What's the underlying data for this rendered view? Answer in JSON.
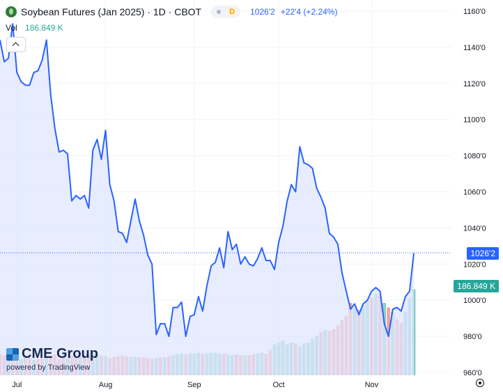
{
  "header": {
    "title": "Soybean Futures (Jan 2025) · 1D · CBOT",
    "interval_badge": "D",
    "last_price": "1026'2",
    "change": "+22'4 (+2.24%)"
  },
  "volume_legend": {
    "label": "Vol",
    "value": "186.849 K"
  },
  "brand": {
    "name": "CME Group",
    "powered_by": "powered by TradingView"
  },
  "price_tag": "1026'2",
  "volume_tag": "186.849 K",
  "colors": {
    "line": "#2962ff",
    "area": "#dfe6fd",
    "volume_up": "#26a69a",
    "volume_down": "#ef5350"
  },
  "chart_data": {
    "type": "area",
    "y_axis": {
      "min": 960,
      "max": 1160,
      "ticks": [
        960,
        980,
        1000,
        1020,
        1040,
        1060,
        1080,
        1100,
        1120,
        1140,
        1160
      ],
      "tick_labels": [
        "960'0",
        "980'0",
        "1000'0",
        "1020'0",
        "1040'0",
        "1060'0",
        "1080'0",
        "1100'0",
        "1120'0",
        "1140'0",
        "1160'0"
      ],
      "position": "right"
    },
    "x_axis": {
      "labels": [
        {
          "label": "Jul",
          "index": 4
        },
        {
          "label": "Aug",
          "index": 25
        },
        {
          "label": "Sep",
          "index": 46
        },
        {
          "label": "Oct",
          "index": 66
        },
        {
          "label": "Nov",
          "index": 88
        }
      ]
    },
    "grid": true,
    "last_price": 1026.25,
    "series": [
      {
        "values": [
          1144,
          1132,
          1134,
          1153,
          1126,
          1121,
          1119,
          1119,
          1126,
          1127,
          1133,
          1144,
          1114,
          1095,
          1082,
          1083,
          1081,
          1055,
          1058,
          1056,
          1058,
          1051,
          1083,
          1089,
          1078,
          1094,
          1064,
          1055,
          1038,
          1037,
          1032,
          1044,
          1056,
          1044,
          1036,
          1025,
          1020,
          981,
          987,
          987,
          980,
          996,
          996,
          999,
          980,
          991,
          992,
          1002,
          994,
          1008,
          1019,
          1021,
          1029,
          1018,
          1038,
          1028,
          1031,
          1020,
          1024,
          1020,
          1019,
          1023,
          1029,
          1022,
          1022,
          1017,
          1032,
          1041,
          1055,
          1064,
          1060,
          1085,
          1076,
          1075,
          1073,
          1062,
          1057,
          1051,
          1037,
          1035,
          1031,
          1015,
          1005,
          995,
          998,
          992,
          998,
          1000,
          1005,
          1007,
          1005,
          987,
          980,
          995,
          996,
          994,
          1002,
          1005,
          1026
        ]
      }
    ],
    "volume": {
      "up_color": "#26a69a",
      "down_color": "#ef5350",
      "values": [
        {
          "v": 24,
          "up": false
        },
        {
          "v": 22,
          "up": false
        },
        {
          "v": 21,
          "up": true
        },
        {
          "v": 20,
          "up": false
        },
        {
          "v": 19,
          "up": false
        },
        {
          "v": 18,
          "up": true
        },
        {
          "v": 19,
          "up": false
        },
        {
          "v": 20,
          "up": false
        },
        {
          "v": 17,
          "up": true
        },
        {
          "v": 18,
          "up": false
        },
        {
          "v": 19,
          "up": false
        },
        {
          "v": 21,
          "up": true
        },
        {
          "v": 22,
          "up": false
        },
        {
          "v": 23,
          "up": false
        },
        {
          "v": 18,
          "up": false
        },
        {
          "v": 20,
          "up": false
        },
        {
          "v": 19,
          "up": true
        },
        {
          "v": 21,
          "up": false
        },
        {
          "v": 22,
          "up": false
        },
        {
          "v": 21,
          "up": true
        },
        {
          "v": 20,
          "up": false
        },
        {
          "v": 22,
          "up": false
        },
        {
          "v": 24,
          "up": true
        },
        {
          "v": 23,
          "up": true
        },
        {
          "v": 22,
          "up": false
        },
        {
          "v": 21,
          "up": true
        },
        {
          "v": 19,
          "up": false
        },
        {
          "v": 20,
          "up": false
        },
        {
          "v": 21,
          "up": false
        },
        {
          "v": 22,
          "up": false
        },
        {
          "v": 21,
          "up": false
        },
        {
          "v": 20,
          "up": true
        },
        {
          "v": 21,
          "up": true
        },
        {
          "v": 20,
          "up": false
        },
        {
          "v": 20,
          "up": false
        },
        {
          "v": 19,
          "up": false
        },
        {
          "v": 18,
          "up": false
        },
        {
          "v": 19,
          "up": true
        },
        {
          "v": 20,
          "up": false
        },
        {
          "v": 20,
          "up": true
        },
        {
          "v": 21,
          "up": false
        },
        {
          "v": 22,
          "up": true
        },
        {
          "v": 23,
          "up": true
        },
        {
          "v": 24,
          "up": true
        },
        {
          "v": 23,
          "up": false
        },
        {
          "v": 24,
          "up": true
        },
        {
          "v": 24,
          "up": true
        },
        {
          "v": 25,
          "up": true
        },
        {
          "v": 24,
          "up": false
        },
        {
          "v": 24,
          "up": true
        },
        {
          "v": 25,
          "up": true
        },
        {
          "v": 25,
          "up": true
        },
        {
          "v": 24,
          "up": true
        },
        {
          "v": 24,
          "up": false
        },
        {
          "v": 23,
          "up": true
        },
        {
          "v": 22,
          "up": true
        },
        {
          "v": 23,
          "up": false
        },
        {
          "v": 22,
          "up": false
        },
        {
          "v": 22,
          "up": true
        },
        {
          "v": 22,
          "up": false
        },
        {
          "v": 23,
          "up": false
        },
        {
          "v": 24,
          "up": true
        },
        {
          "v": 25,
          "up": true
        },
        {
          "v": 24,
          "up": false
        },
        {
          "v": 28,
          "up": false
        },
        {
          "v": 34,
          "up": true
        },
        {
          "v": 36,
          "up": true
        },
        {
          "v": 38,
          "up": true
        },
        {
          "v": 34,
          "up": true
        },
        {
          "v": 36,
          "up": true
        },
        {
          "v": 35,
          "up": false
        },
        {
          "v": 32,
          "up": true
        },
        {
          "v": 35,
          "up": true
        },
        {
          "v": 36,
          "up": true
        },
        {
          "v": 40,
          "up": true
        },
        {
          "v": 44,
          "up": true
        },
        {
          "v": 48,
          "up": false
        },
        {
          "v": 50,
          "up": true
        },
        {
          "v": 49,
          "up": false
        },
        {
          "v": 51,
          "up": false
        },
        {
          "v": 55,
          "up": false
        },
        {
          "v": 61,
          "up": false
        },
        {
          "v": 66,
          "up": false
        },
        {
          "v": 80,
          "up": false
        },
        {
          "v": 75,
          "up": true
        },
        {
          "v": 72,
          "up": false
        },
        {
          "v": 78,
          "up": true
        },
        {
          "v": 82,
          "up": true
        },
        {
          "v": 86,
          "up": false
        },
        {
          "v": 90,
          "up": true
        },
        {
          "v": 88,
          "up": false
        },
        {
          "v": 80,
          "up": true
        },
        {
          "v": 75,
          "up": false
        },
        {
          "v": 70,
          "up": true
        },
        {
          "v": 62,
          "up": false
        },
        {
          "v": 58,
          "up": false
        },
        {
          "v": 70,
          "up": true
        },
        {
          "v": 85,
          "up": true
        },
        {
          "v": 95,
          "up": true
        }
      ]
    }
  }
}
